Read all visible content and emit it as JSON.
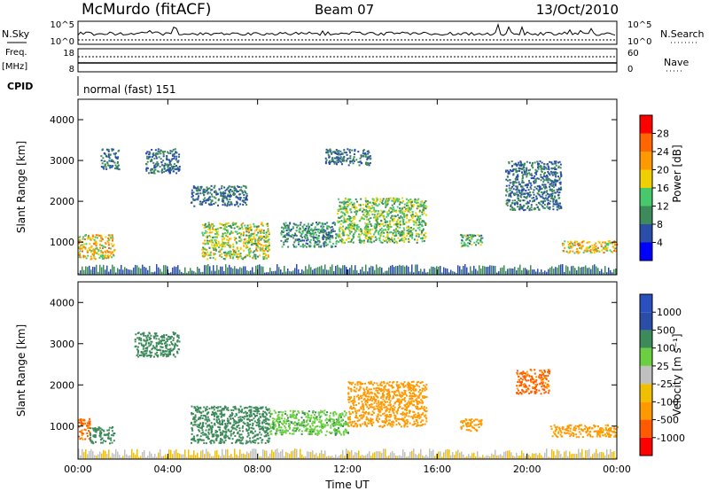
{
  "header": {
    "station": "McMurdo (fitACF)",
    "beam": "Beam 07",
    "date": "13/Oct/2010"
  },
  "status_panels": {
    "nsky_label": "N.Sky",
    "nsky_ticks": [
      "10^5",
      "10^0"
    ],
    "nsearch_label": "N.Search",
    "nsearch_ticks": [
      "10^5",
      "10^0"
    ],
    "freq_label": "Freq.",
    "freq_unit": "[MHz]",
    "freq_ticks": [
      "18",
      "8"
    ],
    "nave_label": "Nave",
    "nave_ticks": [
      "60",
      "0"
    ],
    "cpid_label": "CPID",
    "cpid_text": "normal (fast) 151"
  },
  "colors": {
    "power": [
      "#0000ff",
      "#2a4ea8",
      "#3d8a5a",
      "#47c86a",
      "#f0d000",
      "#ff9900",
      "#ff6600",
      "#ff0000"
    ],
    "velocity": [
      "#ff0000",
      "#ff5a00",
      "#ff9900",
      "#f0c000",
      "#c0c0c0",
      "#6ad040",
      "#3d8a5a",
      "#2a4ea8",
      "#2a50c0"
    ]
  },
  "chart_data": [
    {
      "type": "heatmap",
      "name": "power",
      "xlabel": "",
      "ylabel": "Slant Range [km]",
      "x_ticks": [
        "00:00",
        "04:00",
        "08:00",
        "12:00",
        "16:00",
        "20:00",
        "00:00"
      ],
      "y_ticks": [
        1000,
        2000,
        3000,
        4000
      ],
      "ylim": [
        200,
        4500
      ],
      "xlim": [
        0,
        24
      ],
      "colorbar_label": "Power [dB]",
      "colorbar_ticks": [
        "4",
        "8",
        "12",
        "16",
        "20",
        "24",
        "28"
      ],
      "clim": [
        0,
        32
      ],
      "echo_regions": [
        {
          "t0": 0.0,
          "t1": 1.6,
          "r0": 600,
          "r1": 1200,
          "level": 20
        },
        {
          "t0": 1.0,
          "t1": 1.8,
          "r0": 2800,
          "r1": 3300,
          "level": 8
        },
        {
          "t0": 3.0,
          "t1": 4.5,
          "r0": 2700,
          "r1": 3300,
          "level": 8
        },
        {
          "t0": 5.5,
          "t1": 8.5,
          "r0": 600,
          "r1": 1500,
          "level": 16
        },
        {
          "t0": 5.0,
          "t1": 7.5,
          "r0": 1900,
          "r1": 2400,
          "level": 8
        },
        {
          "t0": 9.0,
          "t1": 11.5,
          "r0": 900,
          "r1": 1500,
          "level": 10
        },
        {
          "t0": 11.5,
          "t1": 15.5,
          "r0": 1000,
          "r1": 2100,
          "level": 14
        },
        {
          "t0": 11.0,
          "t1": 13.0,
          "r0": 2900,
          "r1": 3300,
          "level": 8
        },
        {
          "t0": 17.0,
          "t1": 18.0,
          "r0": 900,
          "r1": 1200,
          "level": 12
        },
        {
          "t0": 19.0,
          "t1": 21.5,
          "r0": 1800,
          "r1": 3000,
          "level": 8
        },
        {
          "t0": 21.5,
          "t1": 24.0,
          "r0": 750,
          "r1": 1050,
          "level": 20
        }
      ]
    },
    {
      "type": "heatmap",
      "name": "velocity",
      "xlabel": "Time UT",
      "ylabel": "Slant Range [km]",
      "x_ticks": [
        "00:00",
        "04:00",
        "08:00",
        "12:00",
        "16:00",
        "20:00",
        "00:00"
      ],
      "y_ticks": [
        1000,
        2000,
        3000,
        4000
      ],
      "ylim": [
        200,
        4500
      ],
      "xlim": [
        0,
        24
      ],
      "colorbar_label": "Velocity [m s⁻¹]",
      "colorbar_ticks": [
        "-1000",
        "-500",
        "-100",
        "-25",
        "25",
        "100",
        "500",
        "1000"
      ],
      "echo_regions": [
        {
          "t0": 0.0,
          "t1": 0.5,
          "r0": 700,
          "r1": 1200,
          "level": -600
        },
        {
          "t0": 0.5,
          "t1": 1.6,
          "r0": 600,
          "r1": 1000,
          "level": 300
        },
        {
          "t0": 2.5,
          "t1": 4.5,
          "r0": 2700,
          "r1": 3300,
          "level": 300
        },
        {
          "t0": 5.0,
          "t1": 8.5,
          "r0": 600,
          "r1": 1500,
          "level": 300
        },
        {
          "t0": 8.5,
          "t1": 12.0,
          "r0": 800,
          "r1": 1400,
          "level": 80
        },
        {
          "t0": 12.0,
          "t1": 15.5,
          "r0": 1000,
          "r1": 2100,
          "level": -200
        },
        {
          "t0": 17.0,
          "t1": 18.0,
          "r0": 900,
          "r1": 1200,
          "level": -200
        },
        {
          "t0": 19.5,
          "t1": 21.0,
          "r0": 1800,
          "r1": 2400,
          "level": -600
        },
        {
          "t0": 21.0,
          "t1": 24.0,
          "r0": 750,
          "r1": 1050,
          "level": -150
        }
      ]
    }
  ]
}
